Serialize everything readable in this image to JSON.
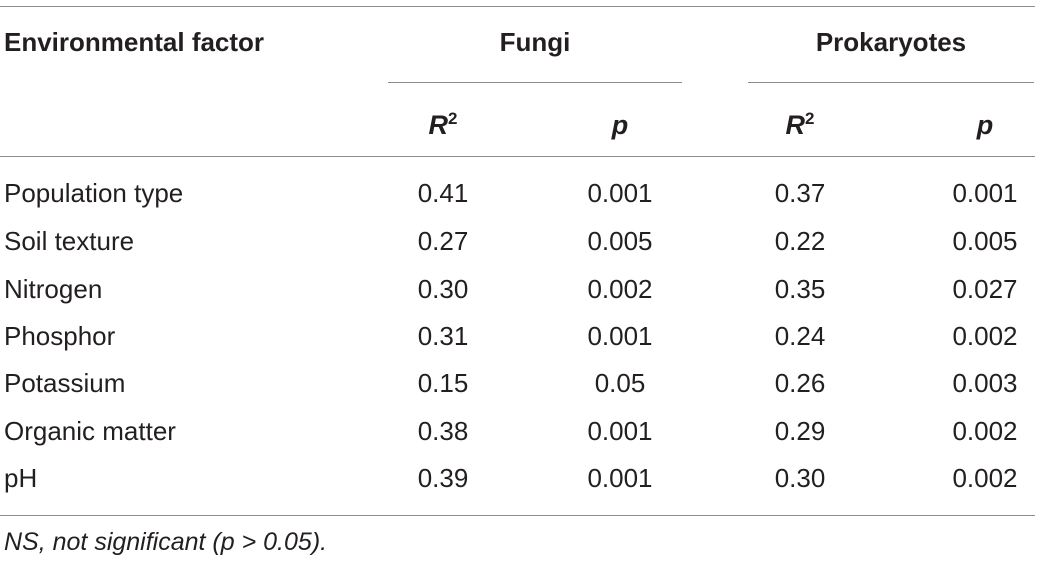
{
  "header": {
    "col_factor": "Environmental factor",
    "group_fungi": "Fungi",
    "group_prokaryotes": "Prokaryotes",
    "sub_r2_base": "R",
    "sub_r2_exp": "2",
    "sub_p": "p"
  },
  "rows": [
    {
      "factor": "Population type",
      "fungi_r2": "0.41",
      "fungi_p": "0.001",
      "prok_r2": "0.37",
      "prok_p": "0.001"
    },
    {
      "factor": "Soil texture",
      "fungi_r2": "0.27",
      "fungi_p": "0.005",
      "prok_r2": "0.22",
      "prok_p": "0.005"
    },
    {
      "factor": "Nitrogen",
      "fungi_r2": "0.30",
      "fungi_p": "0.002",
      "prok_r2": "0.35",
      "prok_p": "0.027"
    },
    {
      "factor": "Phosphor",
      "fungi_r2": "0.31",
      "fungi_p": "0.001",
      "prok_r2": "0.24",
      "prok_p": "0.002"
    },
    {
      "factor": "Potassium",
      "fungi_r2": "0.15",
      "fungi_p": "0.05",
      "prok_r2": "0.26",
      "prok_p": "0.003"
    },
    {
      "factor": "Organic matter",
      "fungi_r2": "0.38",
      "fungi_p": "0.001",
      "prok_r2": "0.29",
      "prok_p": "0.002"
    },
    {
      "factor": "pH",
      "fungi_r2": "0.39",
      "fungi_p": "0.001",
      "prok_r2": "0.30",
      "prok_p": "0.002"
    }
  ],
  "footnote": "NS, not significant (p > 0.05)."
}
